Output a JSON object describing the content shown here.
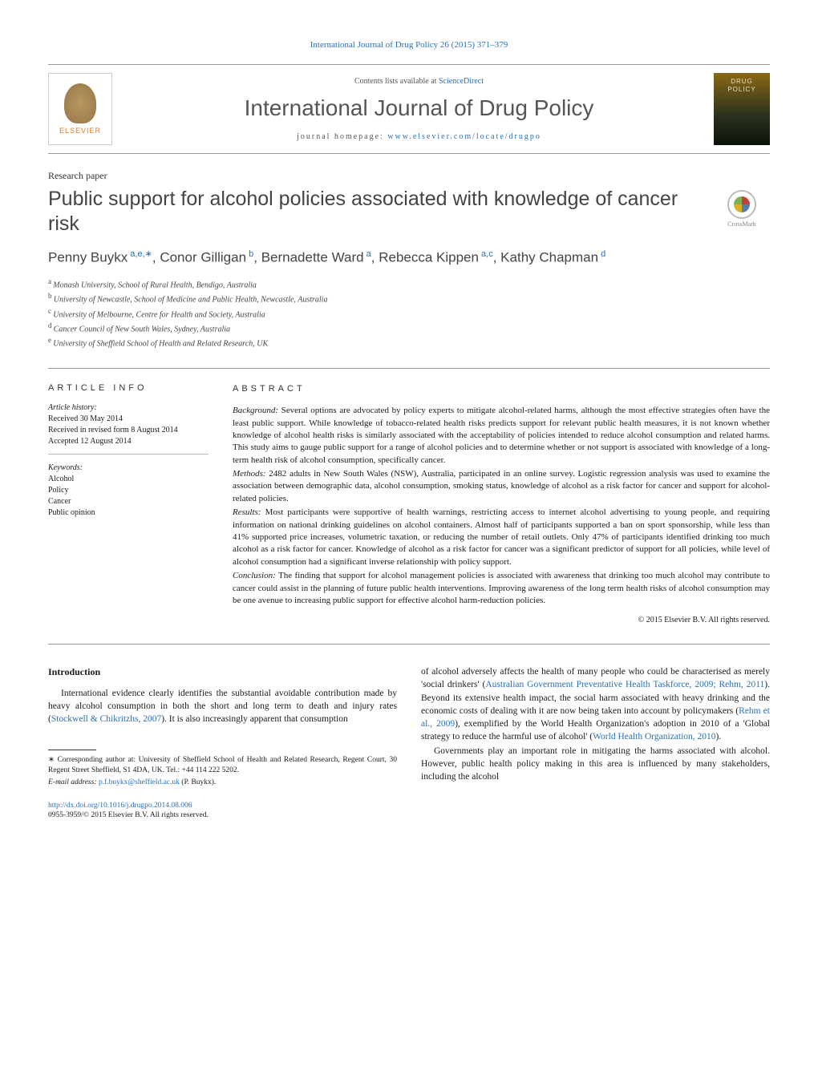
{
  "header": {
    "citation": "International Journal of Drug Policy 26 (2015) 371–379",
    "contents_prefix": "Contents lists available at ",
    "contents_link": "ScienceDirect",
    "journal_name": "International Journal of Drug Policy",
    "homepage_label": "journal homepage: ",
    "homepage_url": "www.elsevier.com/locate/drugpo",
    "elsevier_label": "ELSEVIER",
    "thumb_line1": "DRUG",
    "thumb_line2": "POLICY"
  },
  "article": {
    "type": "Research paper",
    "title": "Public support for alcohol policies associated with knowledge of cancer risk",
    "crossmark_label": "CrossMark",
    "authors_html": "Penny Buykx",
    "authors": [
      {
        "name": "Penny Buykx",
        "sup": "a,e,",
        "star": true
      },
      {
        "name": "Conor Gilligan",
        "sup": "b"
      },
      {
        "name": "Bernadette Ward",
        "sup": "a"
      },
      {
        "name": "Rebecca Kippen",
        "sup": "a,c"
      },
      {
        "name": "Kathy Chapman",
        "sup": "d"
      }
    ],
    "affiliations": [
      {
        "key": "a",
        "text": "Monash University, School of Rural Health, Bendigo, Australia"
      },
      {
        "key": "b",
        "text": "University of Newcastle, School of Medicine and Public Health, Newcastle, Australia"
      },
      {
        "key": "c",
        "text": "University of Melbourne, Centre for Health and Society, Australia"
      },
      {
        "key": "d",
        "text": "Cancer Council of New South Wales, Sydney, Australia"
      },
      {
        "key": "e",
        "text": "University of Sheffield School of Health and Related Research, UK"
      }
    ]
  },
  "info": {
    "heading": "ARTICLE INFO",
    "history_label": "Article history:",
    "received": "Received 30 May 2014",
    "revised": "Received in revised form 8 August 2014",
    "accepted": "Accepted 12 August 2014",
    "keywords_label": "Keywords:",
    "keywords": [
      "Alcohol",
      "Policy",
      "Cancer",
      "Public opinion"
    ]
  },
  "abstract": {
    "heading": "ABSTRACT",
    "background_label": "Background:",
    "background": " Several options are advocated by policy experts to mitigate alcohol-related harms, although the most effective strategies often have the least public support. While knowledge of tobacco-related health risks predicts support for relevant public health measures, it is not known whether knowledge of alcohol health risks is similarly associated with the acceptability of policies intended to reduce alcohol consumption and related harms. This study aims to gauge public support for a range of alcohol policies and to determine whether or not support is associated with knowledge of a long-term health risk of alcohol consumption, specifically cancer.",
    "methods_label": "Methods:",
    "methods": " 2482 adults in New South Wales (NSW), Australia, participated in an online survey. Logistic regression analysis was used to examine the association between demographic data, alcohol consumption, smoking status, knowledge of alcohol as a risk factor for cancer and support for alcohol-related policies.",
    "results_label": "Results:",
    "results": " Most participants were supportive of health warnings, restricting access to internet alcohol advertising to young people, and requiring information on national drinking guidelines on alcohol containers. Almost half of participants supported a ban on sport sponsorship, while less than 41% supported price increases, volumetric taxation, or reducing the number of retail outlets. Only 47% of participants identified drinking too much alcohol as a risk factor for cancer. Knowledge of alcohol as a risk factor for cancer was a significant predictor of support for all policies, while level of alcohol consumption had a significant inverse relationship with policy support.",
    "conclusion_label": "Conclusion:",
    "conclusion": " The finding that support for alcohol management policies is associated with awareness that drinking too much alcohol may contribute to cancer could assist in the planning of future public health interventions. Improving awareness of the long term health risks of alcohol consumption may be one avenue to increasing public support for effective alcohol harm-reduction policies.",
    "copyright": "© 2015 Elsevier B.V. All rights reserved."
  },
  "body": {
    "intro_heading": "Introduction",
    "p1a": "International evidence clearly identifies the substantial avoidable contribution made by heavy alcohol consumption in both the short and long term to death and injury rates (",
    "p1_cite1": "Stockwell & Chikritzhs, 2007",
    "p1b": "). It is also increasingly apparent that consumption",
    "p2a": "of alcohol adversely affects the health of many people who could be characterised as merely 'social drinkers' (",
    "p2_cite1": "Australian Government Preventative Health Taskforce, 2009; Rehm, 2011",
    "p2b": "). Beyond its extensive health impact, the social harm associated with heavy drinking and the economic costs of dealing with it are now being taken into account by policymakers (",
    "p2_cite2": "Rehm et al., 2009",
    "p2c": "), exemplified by the World Health Organization's adoption in 2010 of a 'Global strategy to reduce the harmful use of alcohol' (",
    "p2_cite3": "World Health Organization, 2010",
    "p2d": ").",
    "p3": "Governments play an important role in mitigating the harms associated with alcohol. However, public health policy making in this area is influenced by many stakeholders, including the alcohol"
  },
  "footnotes": {
    "corr": "Corresponding author at: University of Sheffield School of Health and Related Research, Regent Court, 30 Regent Street Sheffield, S1 4DA, UK. Tel.: +44 114 222 5202.",
    "email_label": "E-mail address: ",
    "email": "p.f.buykx@sheffield.ac.uk",
    "email_suffix": " (P. Buykx).",
    "doi_url": "http://dx.doi.org/10.1016/j.drugpo.2014.08.006",
    "issn_line": "0955-3959/© 2015 Elsevier B.V. All rights reserved."
  },
  "colors": {
    "link": "#2a6fb5",
    "elsevier_orange": "#e67817",
    "text": "#1a1a1a",
    "muted": "#555"
  }
}
